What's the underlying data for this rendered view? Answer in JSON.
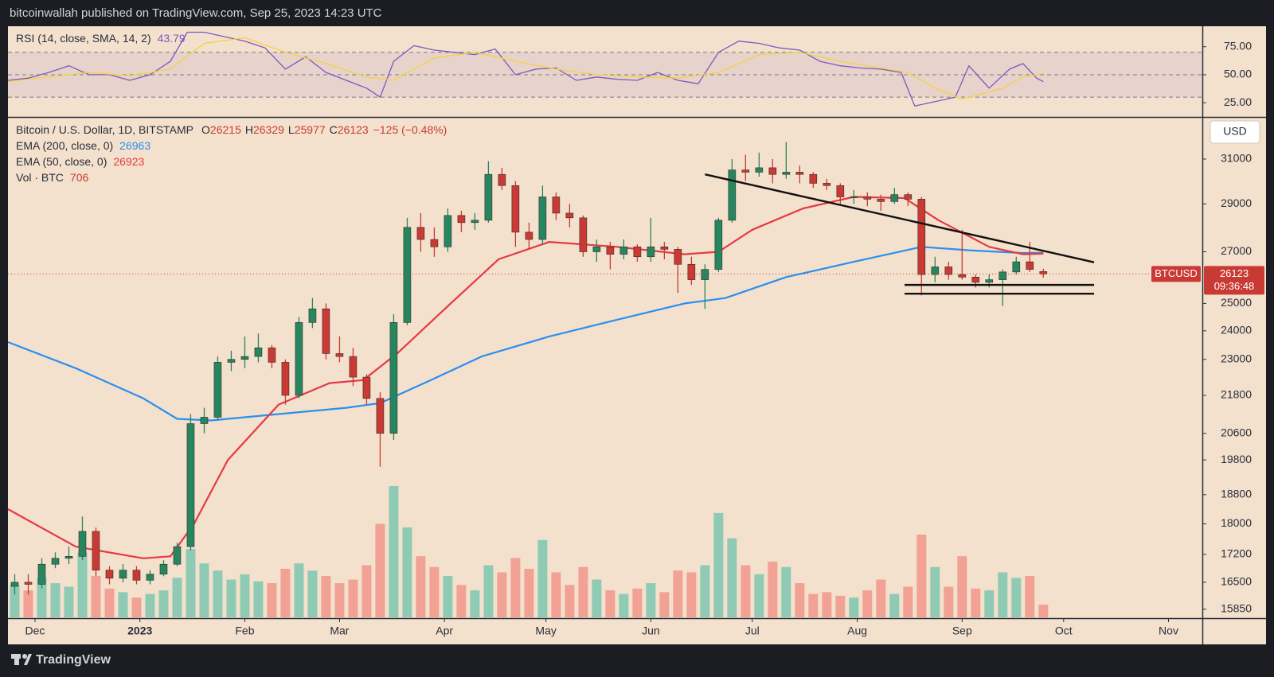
{
  "header": {
    "text": "bitcoinwallah published on TradingView.com, Sep 25, 2023 14:23 UTC"
  },
  "footer": {
    "brand": "TradingView"
  },
  "chart_data": [
    {
      "type": "line",
      "title": "RSI (14, close, SMA, 14, 2)",
      "xlim": [
        0,
        353
      ],
      "ylim": [
        13,
        92.6
      ],
      "yticks": [
        {
          "value": 25,
          "label": "25.00"
        },
        {
          "value": 50,
          "label": "50.00"
        },
        {
          "value": 75,
          "label": "75.00"
        }
      ],
      "band": [
        30,
        70
      ],
      "midline": 50,
      "band_color": "#7e57c2",
      "series": [
        {
          "color": "#7e57c2",
          "x": [
            0,
            6,
            12,
            18,
            24,
            30,
            36,
            42,
            48,
            53,
            58,
            64,
            70,
            76,
            82,
            88,
            94,
            100,
            106,
            110,
            114,
            120,
            126,
            132,
            138,
            144,
            150,
            156,
            162,
            168,
            174,
            180,
            186,
            192,
            198,
            204,
            210,
            216,
            222,
            228,
            234,
            240,
            246,
            252,
            258,
            264,
            268,
            274,
            280,
            284,
            290,
            296,
            300,
            304,
            306
          ],
          "values": [
            45,
            47,
            52,
            58,
            50,
            50,
            45,
            50,
            62,
            88,
            88,
            84,
            80,
            74,
            55,
            66,
            52,
            45,
            38,
            30,
            62,
            76,
            72,
            70,
            68,
            73,
            50,
            55,
            56,
            45,
            48,
            46,
            45,
            52,
            45,
            42,
            70,
            80,
            78,
            74,
            72,
            62,
            58,
            56,
            55,
            52,
            22,
            26,
            30,
            58,
            38,
            55,
            60,
            47,
            43.79
          ]
        },
        {
          "color": "#f5d23c",
          "x": [
            0,
            12,
            24,
            36,
            48,
            58,
            70,
            82,
            94,
            106,
            114,
            126,
            138,
            150,
            162,
            174,
            186,
            198,
            210,
            222,
            234,
            246,
            258,
            266,
            274,
            282,
            294,
            300,
            306
          ],
          "values": [
            44,
            48,
            52,
            49,
            55,
            78,
            83,
            70,
            60,
            48,
            45,
            65,
            70,
            62,
            55,
            50,
            48,
            47,
            52,
            68,
            70,
            62,
            56,
            52,
            38,
            28,
            38,
            48,
            51
          ]
        }
      ]
    },
    {
      "type": "candlestick",
      "title": "Bitcoin / U.S. Dollar, 1D, BITSTAMP",
      "ohlc_labels": [
        "O",
        "H",
        "L",
        "C"
      ],
      "change_label": "−125 (−0.48%)",
      "currency": "USD",
      "symbol": "BTCUSD",
      "countdown": "09:36:48",
      "log_scale": true,
      "xlim": [
        0,
        353
      ],
      "ylim": [
        15660,
        32930
      ],
      "xticks": [
        {
          "value": 8,
          "label": "Dec"
        },
        {
          "value": 39,
          "label": "2023"
        },
        {
          "value": 70,
          "label": "Feb"
        },
        {
          "value": 98,
          "label": "Mar"
        },
        {
          "value": 129,
          "label": "Apr"
        },
        {
          "value": 159,
          "label": "May"
        },
        {
          "value": 190,
          "label": "Jun"
        },
        {
          "value": 220,
          "label": "Jul"
        },
        {
          "value": 251,
          "label": "Aug"
        },
        {
          "value": 282,
          "label": "Sep"
        },
        {
          "value": 312,
          "label": "Oct"
        },
        {
          "value": 343,
          "label": "Nov"
        }
      ],
      "yticks": [
        15850,
        16500,
        17200,
        18000,
        18800,
        19800,
        20600,
        21800,
        23000,
        24000,
        25000,
        27000,
        29000,
        31000
      ],
      "up_color": "#26865f",
      "down_color": "#c93a35",
      "x": [
        2,
        6,
        10,
        14,
        18,
        22,
        26,
        30,
        34,
        38,
        42,
        46,
        50,
        54,
        58,
        62,
        66,
        70,
        74,
        78,
        82,
        86,
        90,
        94,
        98,
        102,
        106,
        110,
        114,
        118,
        122,
        126,
        130,
        134,
        138,
        142,
        146,
        150,
        154,
        158,
        162,
        166,
        170,
        174,
        178,
        182,
        186,
        190,
        194,
        198,
        202,
        206,
        210,
        214,
        218,
        222,
        226,
        230,
        234,
        238,
        242,
        246,
        250,
        254,
        258,
        262,
        266,
        270,
        274,
        278,
        282,
        286,
        290,
        294,
        298,
        302,
        306
      ],
      "open": [
        16400,
        16500,
        16450,
        16950,
        17100,
        17150,
        17800,
        16800,
        16600,
        16800,
        16550,
        16700,
        16950,
        17400,
        20900,
        21100,
        22900,
        23000,
        23100,
        23400,
        22900,
        21800,
        24300,
        24800,
        23200,
        23100,
        22400,
        21700,
        20600,
        24300,
        28000,
        27500,
        27200,
        28500,
        28200,
        28300,
        30300,
        29800,
        27800,
        27500,
        29300,
        28600,
        28400,
        27000,
        27200,
        26900,
        27200,
        26800,
        27200,
        27100,
        26500,
        25900,
        26300,
        28300,
        30500,
        30400,
        30600,
        30300,
        30400,
        30300,
        29900,
        29800,
        29300,
        29300,
        29200,
        29100,
        29400,
        29200,
        26100,
        26400,
        26100,
        26000,
        25800,
        25900,
        26200,
        26600,
        26215
      ],
      "high": [
        16700,
        16700,
        17100,
        17250,
        17400,
        18200,
        17900,
        16900,
        16950,
        16900,
        16800,
        17050,
        17500,
        21200,
        21400,
        23100,
        23300,
        23800,
        23900,
        23500,
        23000,
        24500,
        25200,
        25000,
        23800,
        23400,
        22500,
        21900,
        24600,
        28400,
        28600,
        28000,
        28800,
        28700,
        28600,
        30900,
        30600,
        30000,
        28200,
        29800,
        29500,
        29000,
        28500,
        27500,
        27400,
        27500,
        27300,
        28400,
        27400,
        27200,
        26800,
        26500,
        28400,
        31000,
        31200,
        31300,
        31000,
        31800,
        30700,
        30400,
        30100,
        29900,
        29600,
        29500,
        29400,
        29700,
        29500,
        29300,
        26800,
        26600,
        27900,
        26100,
        26100,
        26300,
        26800,
        27400,
        26329
      ],
      "low": [
        16200,
        16200,
        16350,
        16850,
        16950,
        17050,
        16650,
        16450,
        16500,
        16450,
        16450,
        16650,
        16900,
        17300,
        20600,
        21000,
        22600,
        22700,
        22900,
        22700,
        21500,
        21700,
        24100,
        23000,
        22900,
        22100,
        21500,
        19600,
        20400,
        24200,
        27000,
        26800,
        27000,
        27800,
        27900,
        28200,
        29600,
        27200,
        27100,
        27300,
        28300,
        28000,
        26800,
        26600,
        26300,
        26700,
        26600,
        26600,
        26700,
        25400,
        25700,
        24800,
        26200,
        28200,
        30000,
        30200,
        29900,
        30100,
        29900,
        29700,
        29600,
        29000,
        29000,
        28900,
        28700,
        29000,
        28900,
        25300,
        25800,
        25900,
        25900,
        25600,
        25600,
        24900,
        26100,
        26200,
        25977
      ],
      "close": [
        16500,
        16450,
        16950,
        17100,
        17150,
        17800,
        16800,
        16600,
        16800,
        16550,
        16700,
        16950,
        17400,
        20900,
        21100,
        22900,
        23000,
        23100,
        23400,
        22900,
        21800,
        24300,
        24800,
        23200,
        23100,
        22400,
        21700,
        20600,
        24300,
        28000,
        27500,
        27200,
        28500,
        28200,
        28300,
        30300,
        29800,
        27800,
        27500,
        29300,
        28600,
        28400,
        27000,
        27200,
        26900,
        27200,
        26800,
        27200,
        27100,
        26500,
        25900,
        26300,
        28300,
        30500,
        30400,
        30600,
        30300,
        30400,
        30300,
        29900,
        29800,
        29300,
        29300,
        29200,
        29100,
        29400,
        29200,
        26100,
        26400,
        26100,
        26000,
        25800,
        25900,
        26200,
        26600,
        26300,
        26123
      ],
      "volume": {
        "name": "Vol · BTC",
        "up_color": "#8fcbb4",
        "down_color": "#f2a195",
        "values": [
          1800,
          1500,
          2200,
          1900,
          1700,
          3600,
          2300,
          1600,
          1400,
          1100,
          1300,
          1500,
          2200,
          3800,
          3000,
          2600,
          2100,
          2400,
          2000,
          1900,
          2700,
          3000,
          2600,
          2300,
          1900,
          2100,
          2900,
          5200,
          7300,
          5000,
          3400,
          2800,
          2300,
          1800,
          1500,
          2900,
          2500,
          3300,
          2700,
          4300,
          2500,
          1800,
          2800,
          2100,
          1500,
          1300,
          1600,
          1900,
          1400,
          2600,
          2500,
          2900,
          5800,
          4400,
          2900,
          2400,
          3100,
          2800,
          1900,
          1300,
          1400,
          1200,
          1100,
          1500,
          2100,
          1300,
          1700,
          4600,
          2800,
          1700,
          3400,
          1600,
          1500,
          2500,
          2200,
          2300,
          706
        ]
      },
      "series": [
        {
          "name": "EMA (200, close, 0)",
          "color": "#2a8ff0",
          "x": [
            0,
            20,
            40,
            50,
            60,
            80,
            100,
            110,
            125,
            140,
            160,
            180,
            200,
            212,
            230,
            250,
            270,
            285,
            300,
            306
          ],
          "values": [
            23600,
            22700,
            21700,
            21050,
            21000,
            21200,
            21400,
            21550,
            22300,
            23100,
            23800,
            24400,
            25000,
            25200,
            26000,
            26600,
            27200,
            27050,
            26950,
            26963
          ]
        },
        {
          "name": "EMA (50, close, 0)",
          "color": "#e53945",
          "x": [
            0,
            20,
            40,
            48,
            55,
            65,
            80,
            95,
            105,
            115,
            130,
            145,
            160,
            180,
            200,
            210,
            220,
            235,
            250,
            265,
            275,
            290,
            300,
            306
          ],
          "values": [
            18400,
            17400,
            17100,
            17150,
            18000,
            19800,
            21500,
            22200,
            22300,
            23200,
            24900,
            26700,
            27400,
            27200,
            26900,
            27000,
            27900,
            28800,
            29300,
            29250,
            28300,
            27200,
            26900,
            26923
          ]
        }
      ],
      "trendlines": [
        {
          "x": [
            206,
            321
          ],
          "y": [
            30300,
            26580
          ]
        },
        {
          "x": [
            265,
            321
          ],
          "y": [
            25700,
            25700
          ]
        },
        {
          "x": [
            265,
            321
          ],
          "y": [
            25365,
            25365
          ]
        }
      ]
    }
  ]
}
